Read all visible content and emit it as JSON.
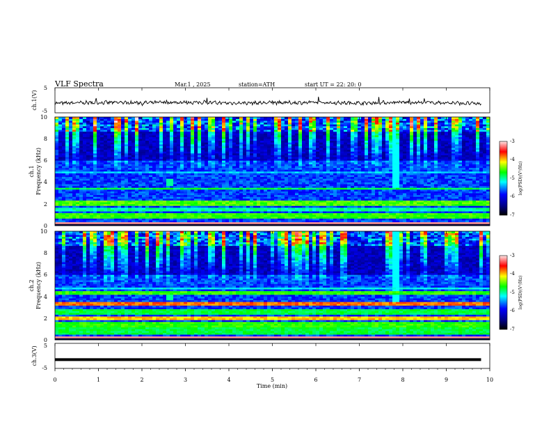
{
  "header": {
    "title": "VLF Spectra",
    "date": "Mar.1  , 2025",
    "station": "station=ATH",
    "start": "start UT =  22: 20: 0"
  },
  "chart_data": [
    {
      "id": "ch1-voltage",
      "type": "line",
      "ylabel": "ch.1(V)",
      "ylim": [
        -5,
        5
      ],
      "y_ticks": [
        "5",
        "-5"
      ],
      "xlim": [
        0,
        10
      ],
      "description_series": "noisy waveform near -1 V",
      "series": [
        {
          "x": [
            0,
            1,
            2,
            3,
            4,
            5,
            6,
            7,
            8,
            9,
            9.8
          ],
          "y": [
            -1.2,
            -0.9,
            -1.0,
            -0.8,
            -1.1,
            -1.0,
            -0.9,
            -1.1,
            -0.8,
            -1.0,
            -1.4
          ]
        }
      ]
    },
    {
      "id": "ch1-spectrogram",
      "type": "heatmap",
      "ylabel": "ch.1\nFrequency (kHz)",
      "ylim": [
        0,
        10
      ],
      "y_ticks": [
        "0",
        "2",
        "4",
        "6",
        "8",
        "10"
      ],
      "xlim": [
        0,
        10
      ],
      "colorbar": {
        "label": "log(PSD)(V²/Hz)",
        "range": [
          -7,
          -3
        ],
        "ticks": [
          "-3",
          "-4",
          "-5",
          "-6",
          "-7"
        ]
      }
    },
    {
      "id": "ch2-spectrogram",
      "type": "heatmap",
      "ylabel": "ch.2\nFrequency (kHz)",
      "ylim": [
        0,
        10
      ],
      "y_ticks": [
        "0",
        "2",
        "4",
        "6",
        "8",
        "10"
      ],
      "xlim": [
        0,
        10
      ],
      "colorbar": {
        "label": "log(PSD)(V²/Hz)",
        "range": [
          -7,
          -3
        ],
        "ticks": [
          "-3",
          "-4",
          "-5",
          "-6",
          "-7"
        ]
      }
    },
    {
      "id": "ch3-voltage",
      "type": "line",
      "ylabel": "ch.3(V)",
      "ylim": [
        -5,
        5
      ],
      "y_ticks": [
        "5",
        "-5"
      ],
      "xlim": [
        0,
        10
      ],
      "series": [
        {
          "x": [
            0,
            9.8
          ],
          "y": [
            -1.5,
            -1.5
          ]
        }
      ]
    }
  ],
  "x_axis": {
    "label": "Time (min)",
    "ticks": [
      "0",
      "1",
      "2",
      "3",
      "4",
      "5",
      "6",
      "7",
      "8",
      "9",
      "10"
    ]
  },
  "colors": {
    "deep": "#000080",
    "blue": "#0000ff",
    "cyan": "#00ffff",
    "green": "#00ff00",
    "yellow": "#ffff00",
    "red": "#ff0000",
    "pink": "#ffcccc"
  }
}
